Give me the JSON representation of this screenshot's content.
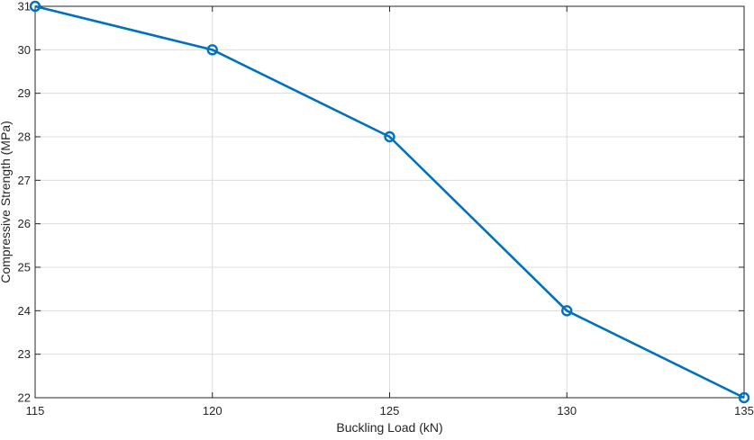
{
  "chart_data": {
    "type": "line",
    "title": "",
    "xlabel": "Buckling Load (kN)",
    "ylabel": "Compressive Strength (MPa)",
    "xlim": [
      115,
      135
    ],
    "ylim": [
      22,
      31
    ],
    "xticks": [
      115,
      120,
      125,
      130,
      135
    ],
    "yticks": [
      22,
      23,
      24,
      25,
      26,
      27,
      28,
      29,
      30,
      31
    ],
    "grid": true,
    "series": [
      {
        "x": [
          115,
          120,
          125,
          130,
          135
        ],
        "y": [
          31,
          30,
          28,
          24,
          22
        ],
        "color": "#0072BD",
        "marker": "circle"
      }
    ]
  }
}
